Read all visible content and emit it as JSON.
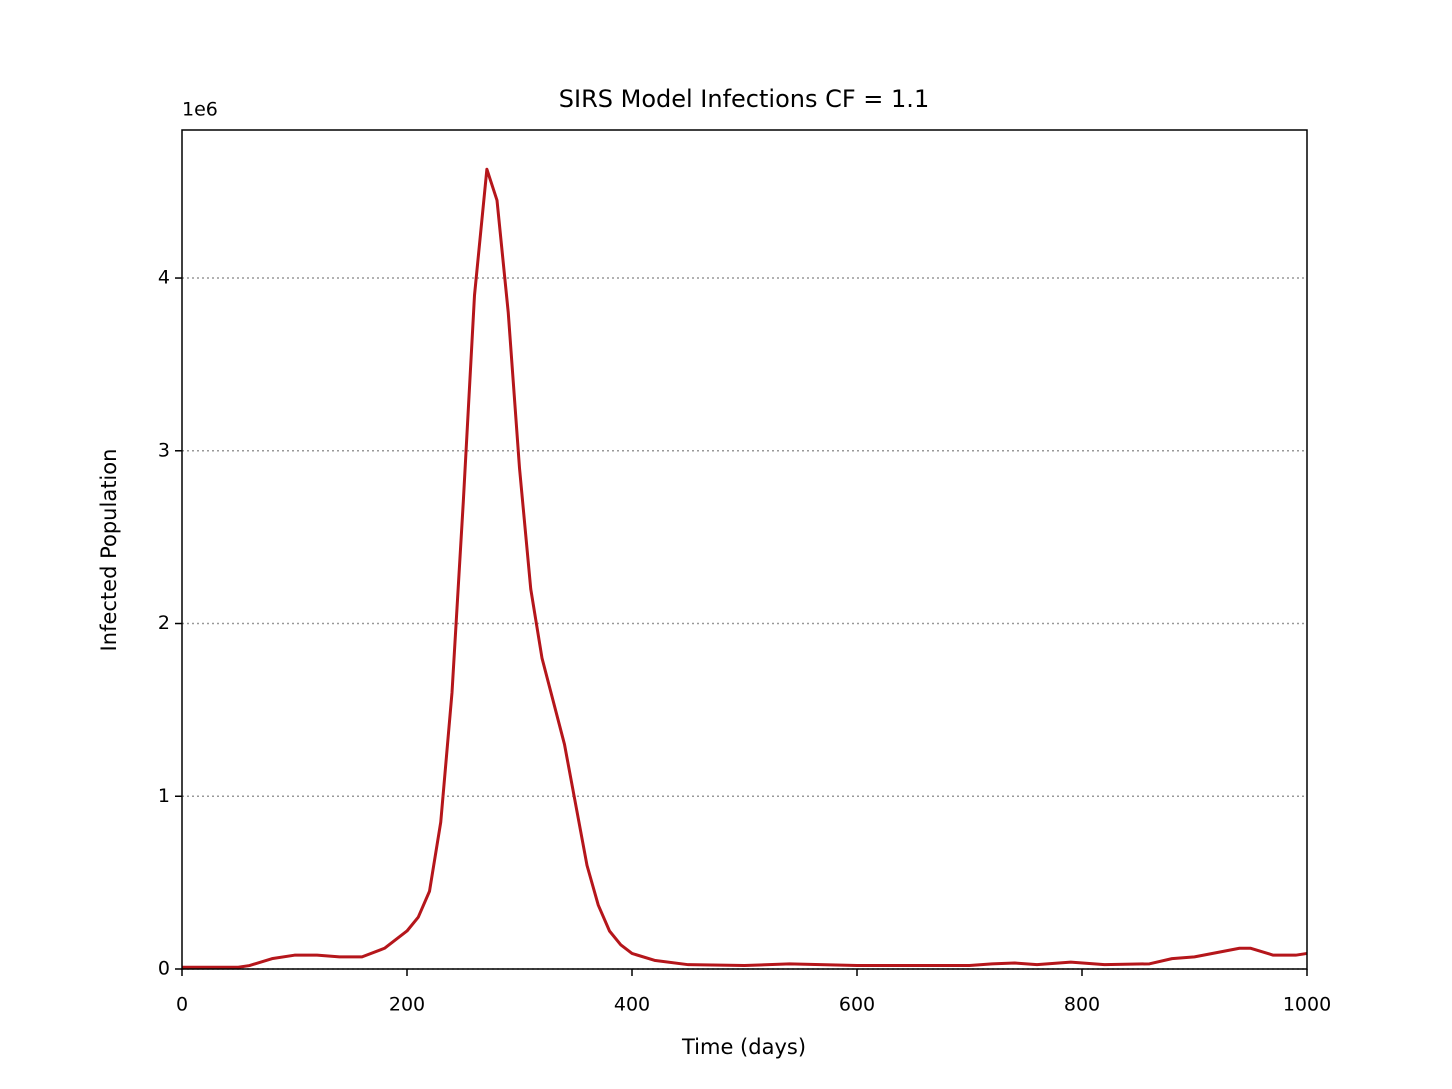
{
  "chart_data": {
    "type": "line",
    "title": "SIRS Model Infections CF = 1.1",
    "x_label": "Time (days)",
    "y_label": "Infected Population",
    "y_offset_label": "1e6",
    "x": [
      0,
      50,
      60,
      80,
      100,
      120,
      140,
      160,
      180,
      200,
      210,
      220,
      230,
      240,
      250,
      260,
      271,
      280,
      290,
      300,
      310,
      320,
      330,
      340,
      350,
      360,
      370,
      380,
      390,
      400,
      420,
      450,
      500,
      540,
      600,
      700,
      720,
      740,
      760,
      790,
      820,
      860,
      880,
      900,
      940,
      950,
      970,
      990,
      1000
    ],
    "series": [
      {
        "name": "Infected",
        "color": "#b5161b",
        "values": [
          0.01,
          0.01,
          0.02,
          0.06,
          0.08,
          0.08,
          0.07,
          0.07,
          0.12,
          0.22,
          0.3,
          0.45,
          0.85,
          1.6,
          2.7,
          3.9,
          4.63,
          4.45,
          3.8,
          2.9,
          2.2,
          1.8,
          1.55,
          1.3,
          0.95,
          0.6,
          0.37,
          0.22,
          0.14,
          0.09,
          0.05,
          0.025,
          0.02,
          0.03,
          0.02,
          0.02,
          0.03,
          0.035,
          0.025,
          0.04,
          0.025,
          0.03,
          0.06,
          0.07,
          0.12,
          0.12,
          0.08,
          0.08,
          0.09
        ]
      }
    ],
    "xlim": [
      0,
      1000
    ],
    "xticks": [
      0,
      200,
      400,
      600,
      800,
      1000
    ],
    "ylim": [
      0,
      4.857
    ],
    "yticks": [
      0,
      1,
      2,
      3,
      4
    ],
    "grid": true
  }
}
